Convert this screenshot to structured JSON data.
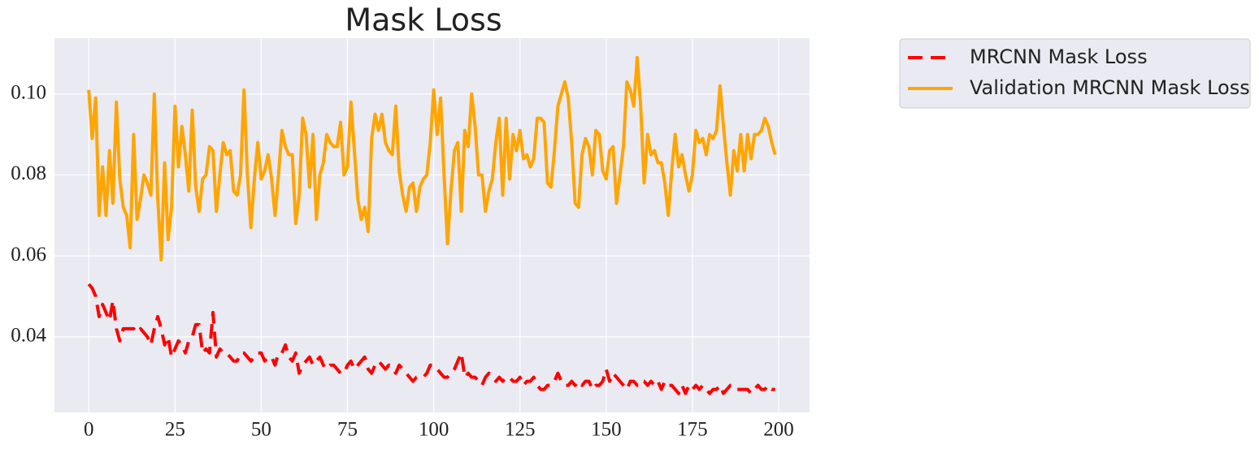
{
  "chart_data": {
    "type": "line",
    "title": "Mask Loss",
    "x": [
      0,
      1,
      2,
      3,
      4,
      5,
      6,
      7,
      8,
      9,
      10,
      11,
      12,
      13,
      14,
      15,
      16,
      17,
      18,
      19,
      20,
      21,
      22,
      23,
      24,
      25,
      26,
      27,
      28,
      29,
      30,
      31,
      32,
      33,
      34,
      35,
      36,
      37,
      38,
      39,
      40,
      41,
      42,
      43,
      44,
      45,
      46,
      47,
      48,
      49,
      50,
      51,
      52,
      53,
      54,
      55,
      56,
      57,
      58,
      59,
      60,
      61,
      62,
      63,
      64,
      65,
      66,
      67,
      68,
      69,
      70,
      71,
      72,
      73,
      74,
      75,
      76,
      77,
      78,
      79,
      80,
      81,
      82,
      83,
      84,
      85,
      86,
      87,
      88,
      89,
      90,
      91,
      92,
      93,
      94,
      95,
      96,
      97,
      98,
      99,
      100,
      101,
      102,
      103,
      104,
      105,
      106,
      107,
      108,
      109,
      110,
      111,
      112,
      113,
      114,
      115,
      116,
      117,
      118,
      119,
      120,
      121,
      122,
      123,
      124,
      125,
      126,
      127,
      128,
      129,
      130,
      131,
      132,
      133,
      134,
      135,
      136,
      137,
      138,
      139,
      140,
      141,
      142,
      143,
      144,
      145,
      146,
      147,
      148,
      149,
      150,
      151,
      152,
      153,
      154,
      155,
      156,
      157,
      158,
      159,
      160,
      161,
      162,
      163,
      164,
      165,
      166,
      167,
      168,
      169,
      170,
      171,
      172,
      173,
      174,
      175,
      176,
      177,
      178,
      179,
      180,
      181,
      182,
      183,
      184,
      185,
      186,
      187,
      188,
      189,
      190,
      191,
      192,
      193,
      194,
      195,
      196,
      197,
      198,
      199
    ],
    "series": [
      {
        "name": "MRCNN Mask Loss",
        "color": "#ff0000",
        "dashed": true,
        "values": [
          0.053,
          0.052,
          0.05,
          0.045,
          0.048,
          0.046,
          0.044,
          0.049,
          0.042,
          0.039,
          0.042,
          0.042,
          0.042,
          0.042,
          0.041,
          0.042,
          0.041,
          0.04,
          0.038,
          0.042,
          0.045,
          0.042,
          0.038,
          0.04,
          0.035,
          0.037,
          0.039,
          0.038,
          0.036,
          0.039,
          0.04,
          0.043,
          0.043,
          0.036,
          0.037,
          0.036,
          0.046,
          0.035,
          0.037,
          0.036,
          0.036,
          0.035,
          0.034,
          0.034,
          0.036,
          0.036,
          0.035,
          0.034,
          0.035,
          0.036,
          0.036,
          0.034,
          0.035,
          0.035,
          0.033,
          0.036,
          0.036,
          0.038,
          0.035,
          0.034,
          0.036,
          0.031,
          0.033,
          0.034,
          0.035,
          0.033,
          0.034,
          0.035,
          0.033,
          0.032,
          0.033,
          0.033,
          0.032,
          0.031,
          0.031,
          0.033,
          0.034,
          0.032,
          0.033,
          0.034,
          0.035,
          0.032,
          0.031,
          0.033,
          0.034,
          0.033,
          0.032,
          0.033,
          0.032,
          0.031,
          0.033,
          0.032,
          0.031,
          0.03,
          0.029,
          0.03,
          0.03,
          0.03,
          0.031,
          0.033,
          0.033,
          0.032,
          0.031,
          0.03,
          0.03,
          0.031,
          0.032,
          0.034,
          0.036,
          0.03,
          0.031,
          0.03,
          0.03,
          0.029,
          0.028,
          0.03,
          0.031,
          0.03,
          0.029,
          0.03,
          0.029,
          0.03,
          0.03,
          0.029,
          0.029,
          0.03,
          0.028,
          0.029,
          0.029,
          0.03,
          0.028,
          0.027,
          0.027,
          0.028,
          0.028,
          0.029,
          0.031,
          0.029,
          0.028,
          0.028,
          0.029,
          0.028,
          0.029,
          0.028,
          0.029,
          0.029,
          0.027,
          0.028,
          0.028,
          0.029,
          0.032,
          0.029,
          0.031,
          0.03,
          0.029,
          0.028,
          0.027,
          0.029,
          0.029,
          0.028,
          0.029,
          0.029,
          0.028,
          0.029,
          0.028,
          0.029,
          0.027,
          0.029,
          0.028,
          0.028,
          0.027,
          0.026,
          0.028,
          0.026,
          0.028,
          0.027,
          0.028,
          0.027,
          0.028,
          0.027,
          0.026,
          0.027,
          0.027,
          0.028,
          0.026,
          0.027,
          0.028,
          0.028,
          0.027,
          0.027,
          0.027,
          0.027,
          0.026,
          0.027,
          0.028,
          0.027,
          0.027,
          0.028,
          0.027,
          0.027
        ]
      },
      {
        "name": "Validation MRCNN Mask Loss",
        "color": "#ffa500",
        "dashed": false,
        "values": [
          0.101,
          0.089,
          0.099,
          0.07,
          0.082,
          0.07,
          0.086,
          0.073,
          0.098,
          0.079,
          0.072,
          0.07,
          0.062,
          0.09,
          0.069,
          0.074,
          0.08,
          0.078,
          0.075,
          0.1,
          0.074,
          0.059,
          0.083,
          0.064,
          0.072,
          0.097,
          0.082,
          0.092,
          0.085,
          0.076,
          0.096,
          0.077,
          0.071,
          0.079,
          0.08,
          0.087,
          0.086,
          0.071,
          0.08,
          0.088,
          0.085,
          0.086,
          0.076,
          0.075,
          0.08,
          0.101,
          0.08,
          0.067,
          0.079,
          0.088,
          0.079,
          0.081,
          0.085,
          0.079,
          0.07,
          0.08,
          0.091,
          0.087,
          0.085,
          0.085,
          0.068,
          0.075,
          0.094,
          0.09,
          0.077,
          0.09,
          0.069,
          0.08,
          0.083,
          0.09,
          0.088,
          0.087,
          0.087,
          0.093,
          0.08,
          0.082,
          0.098,
          0.086,
          0.074,
          0.069,
          0.072,
          0.066,
          0.089,
          0.095,
          0.091,
          0.095,
          0.088,
          0.086,
          0.085,
          0.097,
          0.081,
          0.075,
          0.071,
          0.077,
          0.078,
          0.071,
          0.077,
          0.079,
          0.08,
          0.088,
          0.101,
          0.09,
          0.099,
          0.08,
          0.063,
          0.076,
          0.086,
          0.088,
          0.071,
          0.091,
          0.087,
          0.1,
          0.092,
          0.08,
          0.08,
          0.071,
          0.076,
          0.079,
          0.088,
          0.094,
          0.075,
          0.094,
          0.079,
          0.09,
          0.086,
          0.091,
          0.084,
          0.085,
          0.082,
          0.084,
          0.094,
          0.094,
          0.093,
          0.078,
          0.077,
          0.086,
          0.097,
          0.1,
          0.103,
          0.099,
          0.088,
          0.073,
          0.072,
          0.085,
          0.089,
          0.087,
          0.08,
          0.091,
          0.09,
          0.081,
          0.079,
          0.086,
          0.087,
          0.073,
          0.08,
          0.087,
          0.103,
          0.101,
          0.097,
          0.109,
          0.097,
          0.078,
          0.09,
          0.085,
          0.086,
          0.083,
          0.083,
          0.078,
          0.07,
          0.081,
          0.09,
          0.082,
          0.085,
          0.08,
          0.076,
          0.08,
          0.091,
          0.088,
          0.089,
          0.085,
          0.09,
          0.089,
          0.091,
          0.102,
          0.092,
          0.083,
          0.075,
          0.086,
          0.081,
          0.09,
          0.081,
          0.09,
          0.084,
          0.09,
          0.09,
          0.091,
          0.094,
          0.092,
          0.088,
          0.085
        ]
      }
    ],
    "xlim": [
      -9.95,
      208.95
    ],
    "xticks": [
      0,
      25,
      50,
      75,
      100,
      125,
      150,
      175,
      200
    ],
    "ylim": [
      0.0213,
      0.1138
    ],
    "yticks": [
      0.04,
      0.06,
      0.08,
      {
        "value": 0.1,
        "label": "0.10"
      }
    ],
    "grid": true,
    "legend": "outside upper right"
  }
}
